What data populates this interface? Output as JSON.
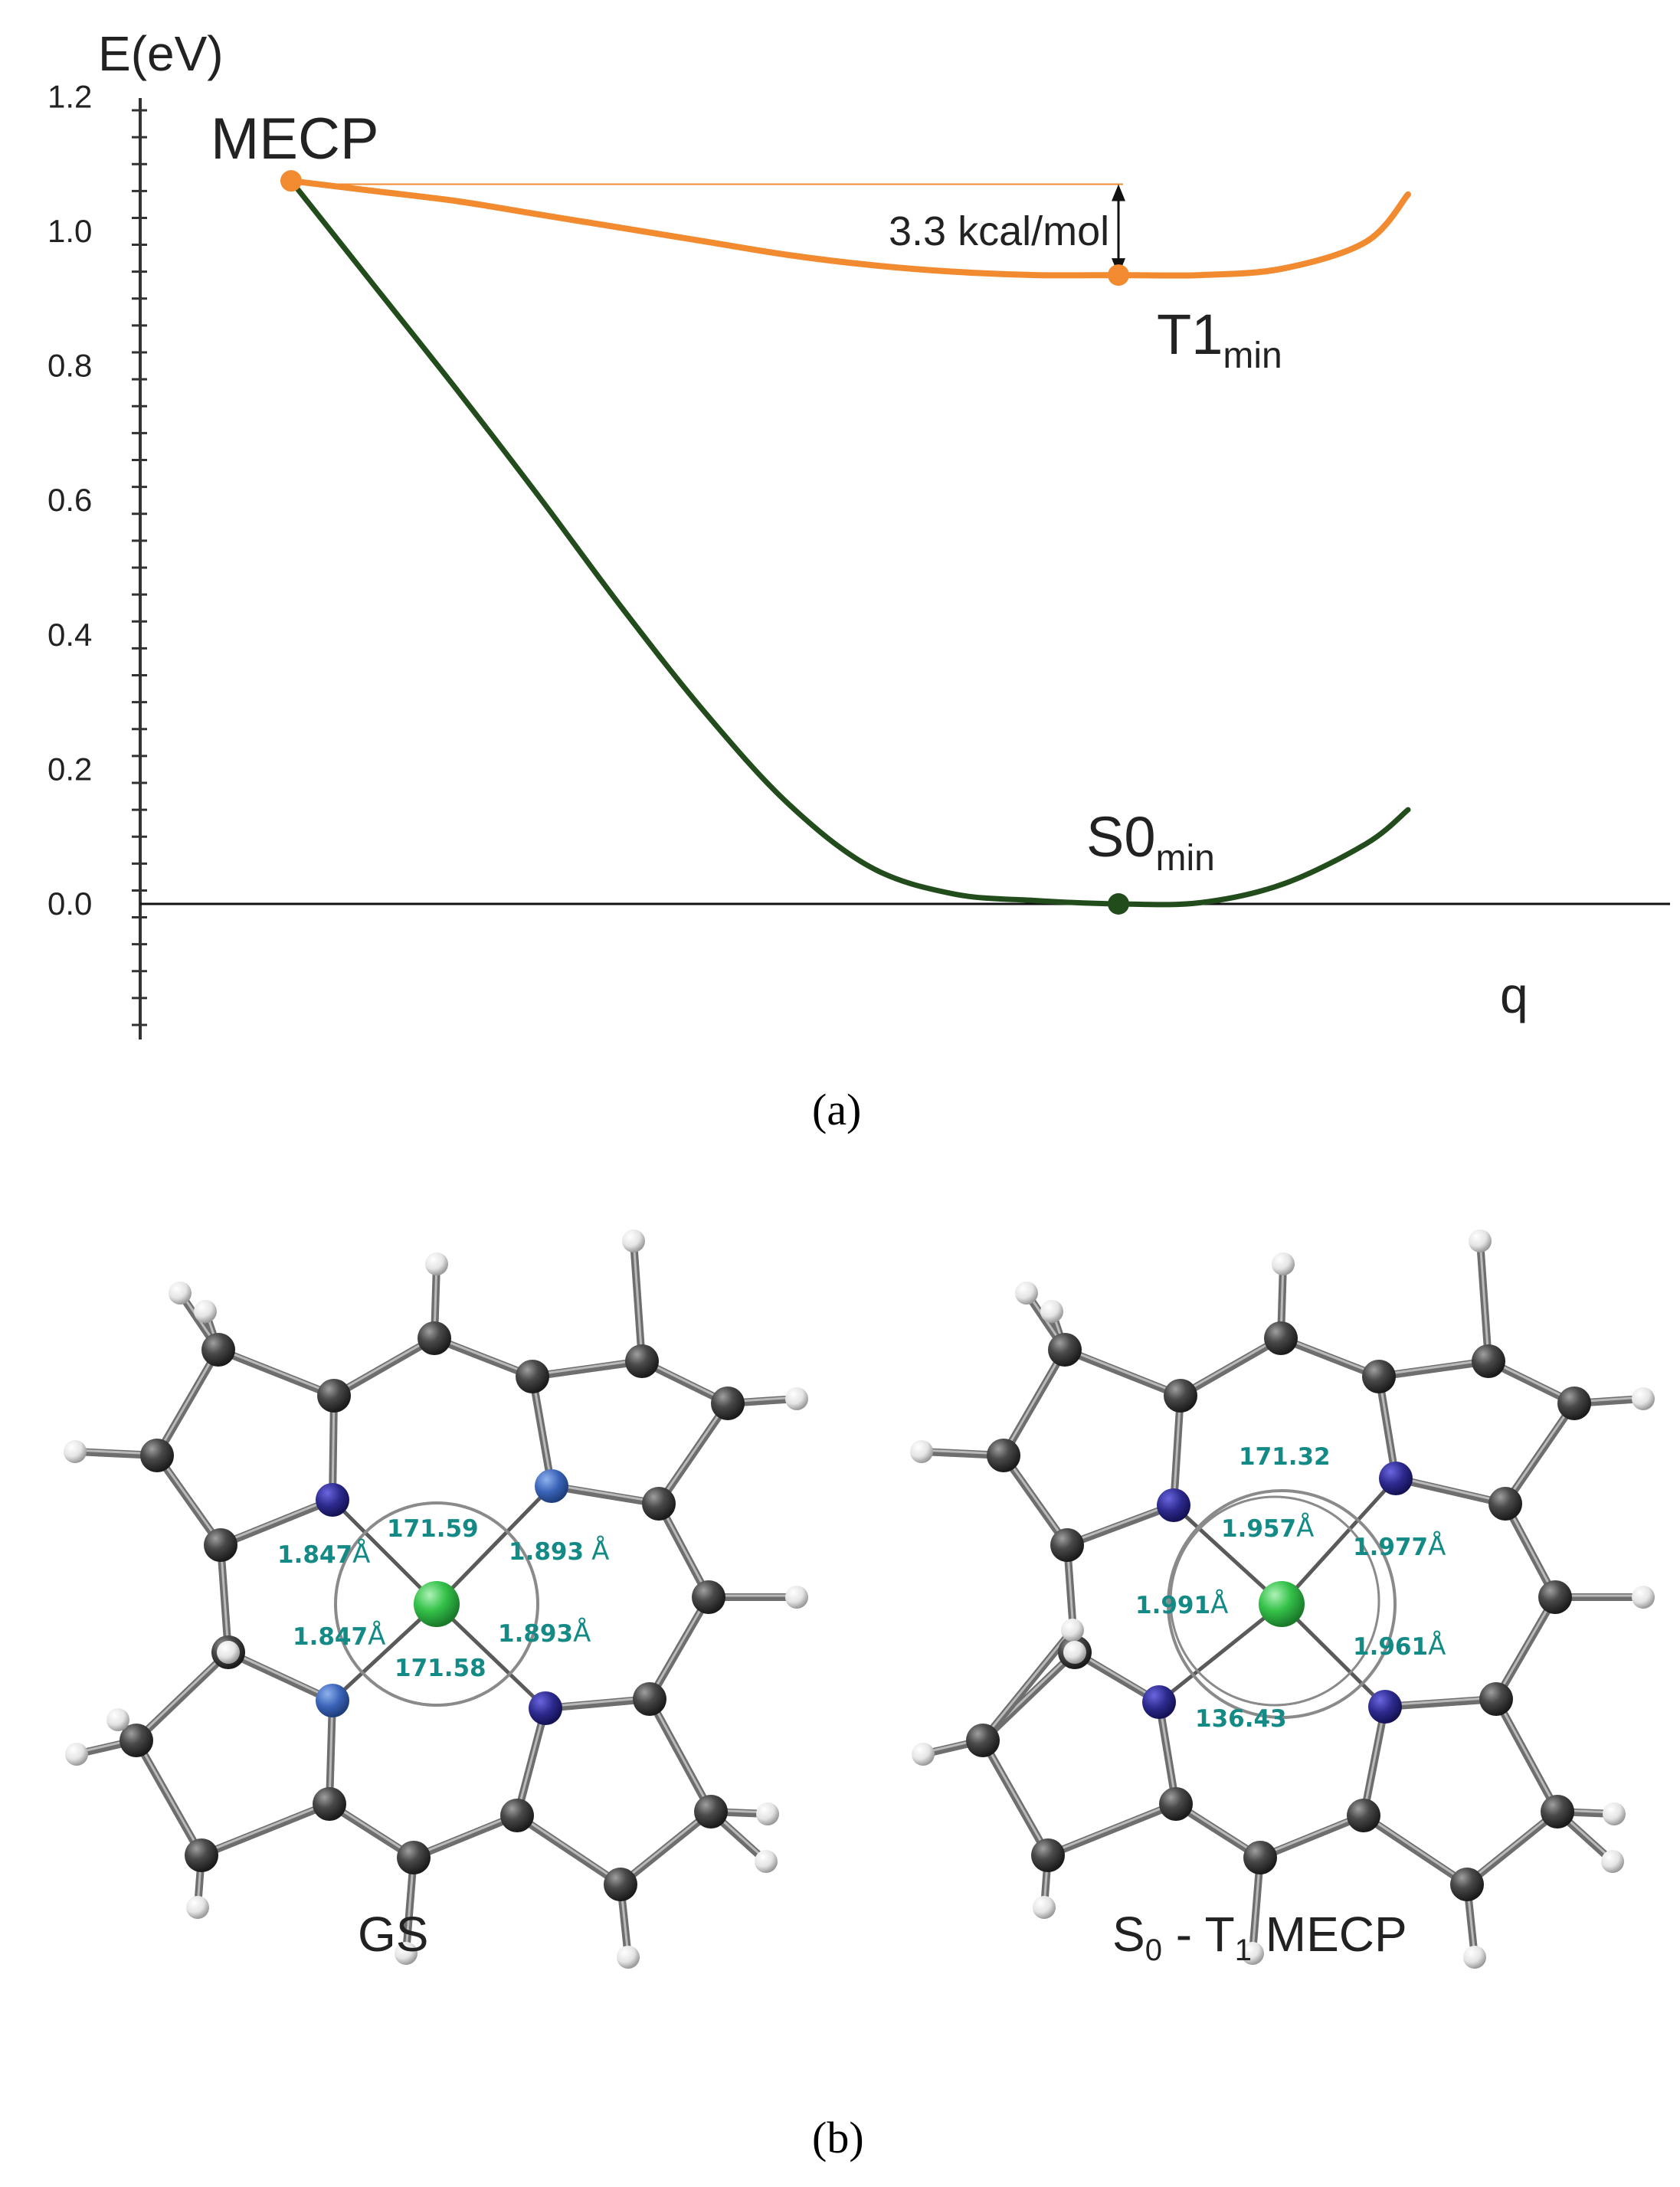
{
  "panel_a": {
    "label": "(a)",
    "ylabel": "E(eV)",
    "xlabel": "q",
    "gap_label": "3.3 kcal/mol",
    "points": {
      "mecp": {
        "name": "MECP",
        "color": "#f28a30"
      },
      "t1": {
        "name": "T1",
        "sub": "min",
        "color": "#f28a30"
      },
      "s0": {
        "name": "S0",
        "sub": "min",
        "color": "#224c1c"
      }
    },
    "colors": {
      "t1_curve": "#f28a30",
      "s0_curve": "#224c1c"
    }
  },
  "chart_data": {
    "type": "line",
    "ylabel": "E(eV)",
    "xlabel": "q",
    "ylim": [
      -0.2,
      1.2
    ],
    "yticks": [
      "1.2",
      "1.0",
      "0.8",
      "0.6",
      "0.4",
      "0.2",
      "0.0"
    ],
    "grid": false,
    "x": [
      0.0,
      0.1,
      0.2,
      0.3,
      0.4,
      0.5,
      0.6,
      0.7,
      0.8,
      0.9,
      1.0,
      1.1,
      1.2,
      1.3,
      1.35
    ],
    "series": [
      {
        "name": "T1",
        "color": "#f28a30",
        "values": [
          1.075,
          1.06,
          1.045,
          1.025,
          1.005,
          0.985,
          0.965,
          0.95,
          0.94,
          0.935,
          0.935,
          0.935,
          0.945,
          0.985,
          1.055
        ]
      },
      {
        "name": "S0",
        "color": "#224c1c",
        "values": [
          1.075,
          0.92,
          0.765,
          0.605,
          0.44,
          0.285,
          0.15,
          0.055,
          0.015,
          0.005,
          0.0,
          0.002,
          0.03,
          0.09,
          0.14
        ]
      }
    ],
    "annotations": [
      {
        "text": "MECP",
        "x": 0.0,
        "y": 1.075
      },
      {
        "text": "T1min",
        "x": 1.0,
        "y": 0.935
      },
      {
        "text": "S0min",
        "x": 1.0,
        "y": 0.0
      },
      {
        "text": "3.3 kcal/mol",
        "from": 1.07,
        "to": 0.935
      }
    ]
  },
  "panel_b": {
    "label": "(b)",
    "gs": {
      "name": "GS",
      "bond_lengths": [
        "1.847",
        "1.893",
        "1.847",
        "1.893"
      ],
      "unit": "Å",
      "angles": [
        "171.59",
        "171.58"
      ]
    },
    "mecp": {
      "name_parts": [
        "S",
        "0",
        " - T",
        "1",
        " MECP"
      ],
      "bond_lengths": [
        "1.957",
        "1.977",
        "1.991",
        "1.961"
      ],
      "unit": "Å",
      "angles": [
        "171.32",
        "136.43"
      ]
    },
    "atom_colors": {
      "carbon": "#3d3d3d",
      "nitrogen_dark": "#2c2a8c",
      "nitrogen_light": "#3a64b8",
      "hydrogen": "#e6e6e6",
      "metal": "#35c24a"
    }
  }
}
